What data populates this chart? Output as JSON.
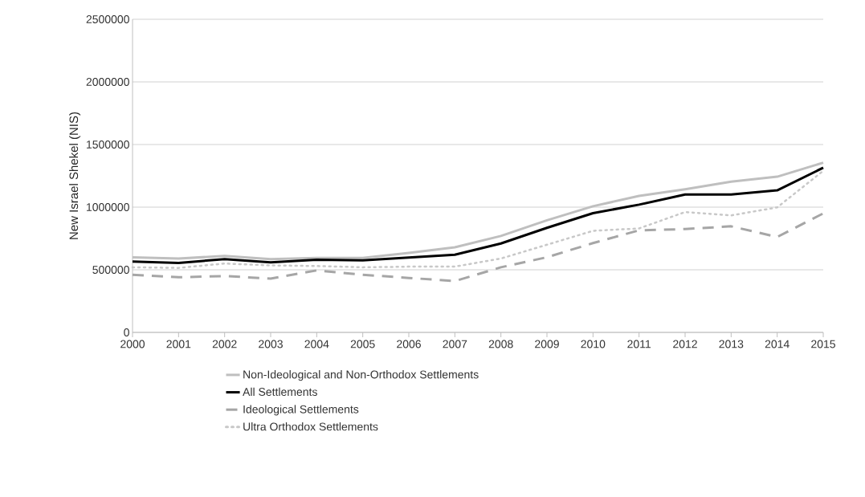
{
  "chart_data": {
    "type": "line",
    "ylabel": "New Israel Shekel (NIS)",
    "x": [
      2000,
      2001,
      2002,
      2003,
      2004,
      2005,
      2006,
      2007,
      2008,
      2009,
      2010,
      2011,
      2012,
      2013,
      2014,
      2015
    ],
    "xlim": [
      2000,
      2015
    ],
    "xticks": [
      2000,
      2001,
      2002,
      2003,
      2004,
      2005,
      2006,
      2007,
      2008,
      2009,
      2010,
      2011,
      2012,
      2013,
      2014,
      2015
    ],
    "ylim": [
      0,
      2500000
    ],
    "yticks": [
      0,
      500000,
      1000000,
      1500000,
      2000000,
      2500000
    ],
    "grid": "y",
    "legend": "bottom",
    "series": [
      {
        "name": "Non-Ideological and Non-Orthodox Settlements",
        "color": "#bfbfbf",
        "line_style": "solid",
        "values": [
          600000,
          590000,
          610000,
          585000,
          595000,
          595000,
          635000,
          680000,
          770000,
          895000,
          1007000,
          1090000,
          1143000,
          1203000,
          1243000,
          1355000
        ]
      },
      {
        "name": "All Settlements",
        "color": "#000000",
        "line_style": "solid",
        "values": [
          565000,
          555000,
          585000,
          560000,
          580000,
          575000,
          598000,
          620000,
          710000,
          835000,
          952000,
          1020000,
          1101000,
          1101000,
          1134000,
          1315000
        ]
      },
      {
        "name": "Ideological Settlements",
        "color": "#a6a6a6",
        "line_style": "dashed",
        "values": [
          460000,
          440000,
          450000,
          430000,
          495000,
          460000,
          435000,
          410000,
          520000,
          600000,
          713000,
          815000,
          825000,
          847000,
          762000,
          950000
        ]
      },
      {
        "name": "Ultra Orthodox Settlements",
        "color": "#c8c8c8",
        "line_style": "dotted",
        "values": [
          520000,
          515000,
          550000,
          535000,
          530000,
          520000,
          525000,
          525000,
          590000,
          700000,
          811000,
          830000,
          961000,
          934000,
          998000,
          1290000
        ]
      }
    ]
  }
}
